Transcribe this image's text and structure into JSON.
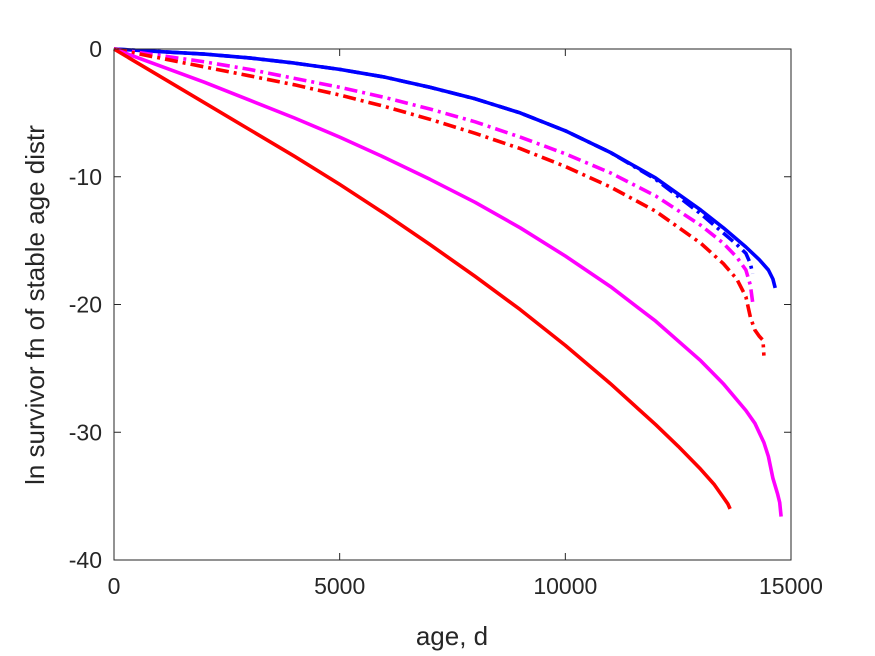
{
  "chart_data": {
    "type": "line",
    "title": "",
    "xlabel": "age, d",
    "ylabel": "ln survivor fn of stable age distr",
    "xlim": [
      0,
      15000
    ],
    "ylim": [
      -40,
      0
    ],
    "xticks": [
      0,
      5000,
      10000,
      15000
    ],
    "xtick_labels": [
      "0",
      "5000",
      "10000",
      "15000"
    ],
    "yticks": [
      -40,
      -30,
      -20,
      -10,
      0
    ],
    "ytick_labels": [
      "-40",
      "-30",
      "-20",
      "-10",
      "0"
    ],
    "grid": false,
    "legend": "none",
    "series": [
      {
        "color": "#0000ff",
        "style": "solid",
        "x": [
          0,
          1000,
          2000,
          3000,
          4000,
          5000,
          6000,
          7000,
          8000,
          9000,
          10000,
          11000,
          12000,
          13000,
          13500,
          14000,
          14300,
          14500,
          14600,
          14650
        ],
        "y": [
          0,
          -0.2,
          -0.4,
          -0.7,
          -1.1,
          -1.6,
          -2.2,
          -3.0,
          -3.9,
          -5.0,
          -6.4,
          -8.1,
          -10.1,
          -12.6,
          -14.0,
          -15.5,
          -16.5,
          -17.3,
          -18.0,
          -18.7
        ]
      },
      {
        "color": "#0000ff",
        "style": "dashdot",
        "x": [
          0,
          1000,
          2000,
          3000,
          4000,
          5000,
          6000,
          7000,
          8000,
          9000,
          10000,
          11000,
          12000,
          13000,
          13500,
          13800,
          14000,
          14100,
          14150
        ],
        "y": [
          0,
          -0.2,
          -0.4,
          -0.7,
          -1.1,
          -1.6,
          -2.2,
          -3.0,
          -3.9,
          -5.0,
          -6.4,
          -8.1,
          -10.2,
          -12.9,
          -14.4,
          -15.3,
          -16.0,
          -16.8,
          -17.6
        ]
      },
      {
        "color": "#ff00ff",
        "style": "dashdot",
        "x": [
          0,
          1000,
          2000,
          3000,
          4000,
          5000,
          6000,
          7000,
          8000,
          9000,
          10000,
          11000,
          12000,
          13000,
          13500,
          13800,
          14000,
          14100,
          14150
        ],
        "y": [
          0,
          -0.5,
          -1.0,
          -1.6,
          -2.3,
          -3.0,
          -3.8,
          -4.7,
          -5.7,
          -6.9,
          -8.2,
          -9.7,
          -11.5,
          -13.8,
          -15.2,
          -16.3,
          -17.3,
          -18.5,
          -19.8
        ]
      },
      {
        "color": "#ff0000",
        "style": "dashdot",
        "x": [
          0,
          1000,
          2000,
          3000,
          4000,
          5000,
          6000,
          7000,
          8000,
          9000,
          10000,
          11000,
          12000,
          13000,
          13500,
          13800,
          14000,
          14100,
          14200,
          14300,
          14380,
          14400
        ],
        "y": [
          0,
          -0.7,
          -1.4,
          -2.1,
          -2.8,
          -3.6,
          -4.5,
          -5.5,
          -6.6,
          -7.8,
          -9.2,
          -10.8,
          -12.7,
          -15.2,
          -16.8,
          -18.0,
          -19.4,
          -21.0,
          -22.0,
          -22.5,
          -22.8,
          -24.0
        ]
      },
      {
        "color": "#ff00ff",
        "style": "solid",
        "x": [
          0,
          1000,
          2000,
          3000,
          4000,
          5000,
          6000,
          7000,
          8000,
          9000,
          10000,
          11000,
          12000,
          13000,
          13500,
          14000,
          14200,
          14400,
          14500,
          14600,
          14700,
          14750,
          14780
        ],
        "y": [
          0,
          -1.3,
          -2.6,
          -4.0,
          -5.4,
          -6.9,
          -8.5,
          -10.2,
          -12.0,
          -14.0,
          -16.2,
          -18.6,
          -21.3,
          -24.4,
          -26.2,
          -28.3,
          -29.3,
          -30.8,
          -31.9,
          -33.6,
          -34.8,
          -35.5,
          -36.6
        ]
      },
      {
        "color": "#ff0000",
        "style": "solid",
        "x": [
          0,
          1000,
          2000,
          3000,
          4000,
          5000,
          6000,
          7000,
          8000,
          9000,
          10000,
          11000,
          12000,
          12500,
          13000,
          13300,
          13500,
          13600,
          13650
        ],
        "y": [
          0,
          -2.1,
          -4.2,
          -6.3,
          -8.4,
          -10.6,
          -12.9,
          -15.3,
          -17.8,
          -20.4,
          -23.2,
          -26.2,
          -29.4,
          -31.1,
          -32.9,
          -34.1,
          -35.1,
          -35.6,
          -36.0
        ]
      }
    ]
  }
}
